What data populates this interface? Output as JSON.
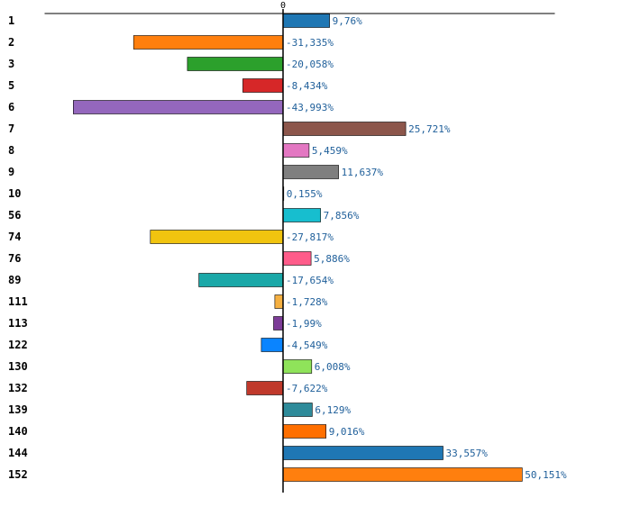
{
  "chart_data": {
    "type": "bar",
    "orientation": "horizontal",
    "title": "",
    "xlabel": "",
    "ylabel": "",
    "xlim": [
      -50,
      57
    ],
    "zero_tick_label": "0",
    "grid": false,
    "categories": [
      "1",
      "2",
      "3",
      "5",
      "6",
      "7",
      "8",
      "9",
      "10",
      "56",
      "74",
      "76",
      "89",
      "111",
      "113",
      "122",
      "130",
      "132",
      "139",
      "140",
      "144",
      "152"
    ],
    "values": [
      9.76,
      -31.335,
      -20.058,
      -8.434,
      -43.993,
      25.721,
      5.459,
      11.637,
      0.155,
      7.856,
      -27.817,
      5.886,
      -17.654,
      -1.728,
      -1.99,
      -4.549,
      6.008,
      -7.622,
      6.129,
      9.016,
      33.557,
      50.151
    ],
    "value_labels": [
      "9,76%",
      "-31,335%",
      "-20,058%",
      "-8,434%",
      "-43,993%",
      "25,721%",
      "5,459%",
      "11,637%",
      "0,155%",
      "7,856%",
      "-27,817%",
      "5,886%",
      "-17,654%",
      "-1,728%",
      "-1,99%",
      "-4,549%",
      "6,008%",
      "-7,622%",
      "6,129%",
      "9,016%",
      "33,557%",
      "50,151%"
    ],
    "colors": [
      "#1f77b4",
      "#ff7f0e",
      "#2ca02c",
      "#d62728",
      "#9467bd",
      "#8c564b",
      "#e377c2",
      "#7f7f7f",
      "#bcbd22",
      "#17becf",
      "#f1c40f",
      "#ff5c8a",
      "#1aa8a8",
      "#f5b041",
      "#7d3c98",
      "#0a84ff",
      "#8fe35a",
      "#c0392b",
      "#2e8b9a",
      "#ff6f00",
      "#1f77b4",
      "#ff7f0e"
    ]
  }
}
